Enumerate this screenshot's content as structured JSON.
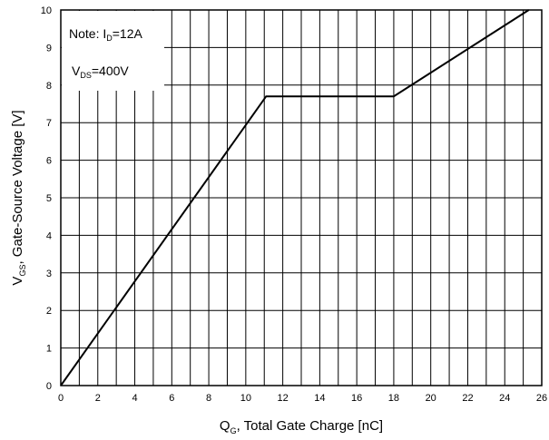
{
  "chart_data": {
    "type": "line",
    "title": "",
    "xlabel": {
      "main": "Q",
      "sub": "G",
      "rest": ", Total Gate Charge [nC]"
    },
    "ylabel": {
      "main": "V",
      "sub": "GS",
      "rest": ", Gate-Source Voltage [V]"
    },
    "xlim": [
      0,
      26
    ],
    "ylim": [
      0,
      10
    ],
    "x_ticks": [
      0,
      2,
      4,
      6,
      8,
      10,
      12,
      14,
      16,
      18,
      20,
      22,
      24,
      26
    ],
    "y_ticks": [
      0,
      1,
      2,
      3,
      4,
      5,
      6,
      7,
      8,
      9,
      10
    ],
    "x_minor_step": 1,
    "grid": true,
    "annotations": [
      {
        "main": "Note: I",
        "sub": "D",
        "rest": "=12A",
        "placement": "top-left"
      },
      {
        "main": "V",
        "sub": "DS",
        "rest": "=400V",
        "placement": "top-left"
      }
    ],
    "series": [
      {
        "x": [
          0,
          11.1,
          18,
          25.3
        ],
        "y": [
          0,
          7.7,
          7.7,
          10
        ]
      }
    ]
  }
}
